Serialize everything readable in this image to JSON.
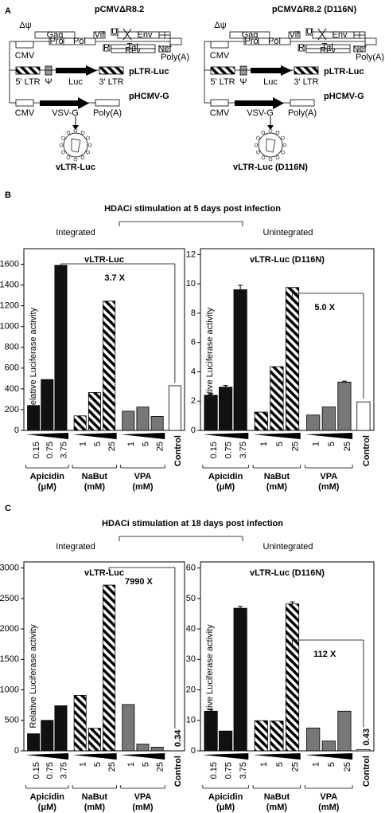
{
  "panel_a": {
    "letter": "A",
    "left_title": "pCMVΔR8.2",
    "right_title": "pCMVΔR8.2 (D116N)",
    "left_virus": "vLTR-Luc",
    "right_virus": "vLTR-Luc (D116N)",
    "packaging": {
      "delta_psi": "Δψ",
      "cmv": "CMV",
      "gag": "Gag",
      "pro": "Pro",
      "pol": "Pol",
      "vif": "Vif",
      "vpr": "R",
      "vpu": "U",
      "env": "Env",
      "tat": "Tat",
      "rev": "Rev",
      "nef": "Nef",
      "polya": "Poly(A)"
    },
    "transfer": {
      "name": "pLTR-Luc",
      "ltr5": "5' LTR",
      "psi": "Ψ",
      "luc": "Luc",
      "ltr3": "3' LTR"
    },
    "envelope": {
      "name": "pHCMV-G",
      "cmv": "CMV",
      "vsvg": "VSV-G",
      "polya": "Poly(A)"
    }
  },
  "panel_b": {
    "letter": "B",
    "title": "HDACi stimulation at 5 days post infection",
    "integrated": "Integrated",
    "unintegrated": "Unintegrated"
  },
  "panel_c": {
    "letter": "C",
    "title": "HDACi stimulation at 18 days post infection",
    "integrated": "Integrated",
    "unintegrated": "Unintegrated"
  },
  "chart_data": [
    {
      "type": "bar",
      "title": "vLTR-Luc",
      "ylabel": "Relative Luciferase activity",
      "annotation": "3.7 X",
      "categories": [
        "0.15",
        "0.75",
        "3.75",
        "1",
        "5",
        "25",
        "1",
        "5",
        "25",
        "Control"
      ],
      "values": [
        240,
        490,
        1590,
        140,
        365,
        1245,
        185,
        225,
        135,
        430
      ],
      "colors": [
        "#111111",
        "#111111",
        "#111111",
        "#ffffff",
        "#ffffff",
        "#ffffff",
        "#777777",
        "#777777",
        "#777777",
        "#ffffff"
      ],
      "hatch": [
        false,
        false,
        false,
        true,
        true,
        true,
        false,
        false,
        false,
        false
      ],
      "groups": [
        {
          "name": "Apicidin",
          "unit": "(μM)"
        },
        {
          "name": "NaBut",
          "unit": "(mM)"
        },
        {
          "name": "VPA",
          "unit": "(mM)"
        }
      ],
      "ylim": [
        0,
        1750
      ],
      "yticks": [
        0,
        200,
        400,
        600,
        800,
        1000,
        1200,
        1400,
        1600
      ]
    },
    {
      "type": "bar",
      "title": "vLTR-Luc (D116N)",
      "ylabel": "Relative Luciferase activity",
      "annotation": "5.0 X",
      "categories": [
        "0.15",
        "0.75",
        "3.75",
        "1",
        "5",
        "25",
        "1",
        "5",
        "25",
        "Control"
      ],
      "values": [
        2.4,
        2.95,
        9.6,
        1.25,
        4.35,
        9.75,
        1.05,
        1.6,
        3.3,
        1.95
      ],
      "errors": [
        0.12,
        0.12,
        0.3,
        0,
        0,
        0,
        0,
        0,
        0.06,
        0
      ],
      "colors": [
        "#111111",
        "#111111",
        "#111111",
        "#ffffff",
        "#ffffff",
        "#ffffff",
        "#777777",
        "#777777",
        "#777777",
        "#ffffff"
      ],
      "hatch": [
        false,
        false,
        false,
        true,
        true,
        true,
        false,
        false,
        false,
        false
      ],
      "groups": [
        {
          "name": "Apicidin",
          "unit": "(μM)"
        },
        {
          "name": "NaBut",
          "unit": "(mM)"
        },
        {
          "name": "VPA",
          "unit": "(mM)"
        }
      ],
      "ylim": [
        0,
        12.4
      ],
      "yticks": [
        0,
        2,
        4,
        6,
        8,
        10,
        12
      ]
    },
    {
      "type": "bar",
      "title": "vLTR-Luc",
      "ylabel": "Relative Luciferase activity",
      "annotation": "7990 X",
      "categories": [
        "0.15",
        "0.75",
        "3.75",
        "1",
        "5",
        "25",
        "1",
        "5",
        "25",
        "Control"
      ],
      "values": [
        280,
        500,
        740,
        910,
        370,
        2720,
        760,
        110,
        60,
        0.34
      ],
      "value_labels": [
        null,
        null,
        null,
        null,
        null,
        null,
        null,
        null,
        null,
        "0.34"
      ],
      "colors": [
        "#111111",
        "#111111",
        "#111111",
        "#ffffff",
        "#ffffff",
        "#ffffff",
        "#777777",
        "#777777",
        "#777777",
        "#ffffff"
      ],
      "hatch": [
        false,
        false,
        false,
        true,
        true,
        true,
        false,
        false,
        false,
        false
      ],
      "groups": [
        {
          "name": "Apicidin",
          "unit": "(μM)"
        },
        {
          "name": "NaBut",
          "unit": "(mM)"
        },
        {
          "name": "VPA",
          "unit": "(mM)"
        }
      ],
      "ylim": [
        0,
        3100
      ],
      "yticks": [
        0,
        500,
        1000,
        1500,
        2000,
        2500,
        3000
      ]
    },
    {
      "type": "bar",
      "title": "vLTR-Luc (D116N)",
      "ylabel": "Relative Luciferase activity",
      "annotation": "112 X",
      "categories": [
        "0.15",
        "0.75",
        "3.75",
        "1",
        "5",
        "25",
        "1",
        "5",
        "25",
        "Control"
      ],
      "values": [
        13,
        6.5,
        46.8,
        9.9,
        9.8,
        48.2,
        7.5,
        3.2,
        13,
        0.43
      ],
      "errors": [
        0.5,
        0,
        0.6,
        0,
        0,
        0.7,
        0,
        0,
        0,
        0
      ],
      "value_labels": [
        null,
        null,
        null,
        null,
        null,
        null,
        null,
        null,
        null,
        "0.43"
      ],
      "colors": [
        "#111111",
        "#111111",
        "#111111",
        "#ffffff",
        "#ffffff",
        "#ffffff",
        "#777777",
        "#777777",
        "#777777",
        "#ffffff"
      ],
      "hatch": [
        false,
        false,
        false,
        true,
        true,
        true,
        false,
        false,
        false,
        false
      ],
      "groups": [
        {
          "name": "Apicidin",
          "unit": "(μM)"
        },
        {
          "name": "NaBut",
          "unit": "(mM)"
        },
        {
          "name": "VPA",
          "unit": "(mM)"
        }
      ],
      "ylim": [
        0,
        62
      ],
      "yticks": [
        0,
        10,
        20,
        30,
        40,
        50,
        60
      ]
    }
  ]
}
